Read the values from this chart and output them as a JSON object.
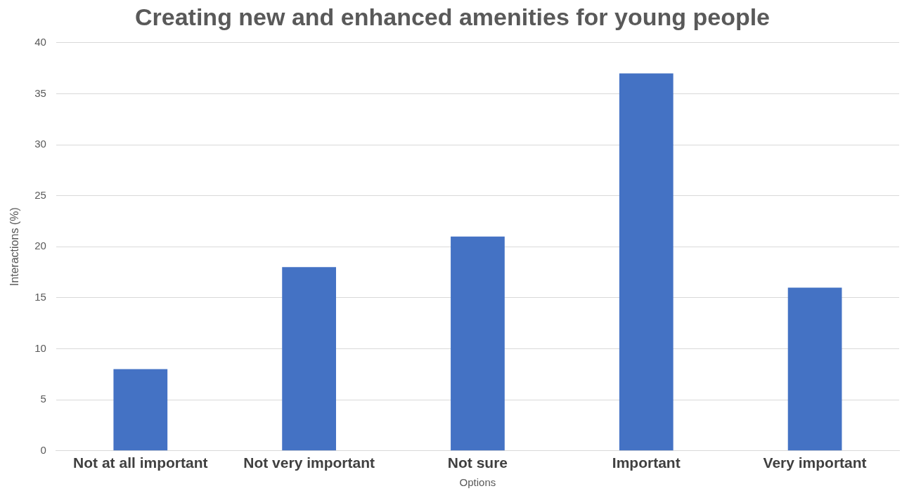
{
  "chart_data": {
    "type": "bar",
    "title": "Creating new and enhanced amenities for young people",
    "xlabel": "Options",
    "ylabel": "Interactions (%)",
    "categories": [
      "Not at all important",
      "Not very important",
      "Not sure",
      "Important",
      "Very important"
    ],
    "values": [
      8,
      18,
      21,
      37,
      16
    ],
    "color": "#4472c4",
    "ylim": [
      0,
      40
    ],
    "yticks": [
      0,
      5,
      10,
      15,
      20,
      25,
      30,
      35,
      40
    ],
    "grid": "y"
  }
}
